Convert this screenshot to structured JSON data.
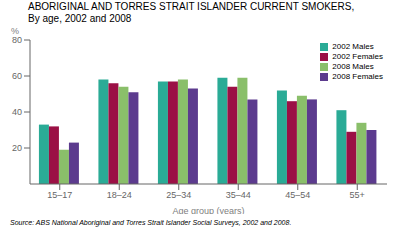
{
  "chart_data": {
    "type": "bar",
    "title": "ABORIGINAL AND TORRES STRAIT ISLANDER CURRENT SMOKERS,",
    "subtitle": "By age, 2002 and 2008",
    "annotations": [
      "Source: ABS National Aboriginal and Torres Strait Islander Social Surveys, 2002 and 2008."
    ],
    "xlabel": "Age group (years)",
    "ylabel": "%",
    "categories": [
      "15–17",
      "18–24",
      "25–34",
      "35–44",
      "45–54",
      "55+"
    ],
    "series": [
      {
        "name": "2002 Males",
        "color": "#2aab96",
        "values": [
          33,
          58,
          57,
          59,
          52,
          41
        ]
      },
      {
        "name": "2002 Females",
        "color": "#9b1045",
        "values": [
          32,
          56,
          57,
          54,
          46,
          29
        ]
      },
      {
        "name": "2008 Males",
        "color": "#8abf6a",
        "values": [
          19,
          54,
          58,
          59,
          49,
          34
        ]
      },
      {
        "name": "2008 Females",
        "color": "#5c3b8e",
        "values": [
          23,
          51,
          53,
          47,
          47,
          30
        ]
      }
    ],
    "ylim": [
      0,
      80
    ],
    "yticks": [
      20,
      40,
      60,
      80
    ],
    "legend": "upper right"
  }
}
